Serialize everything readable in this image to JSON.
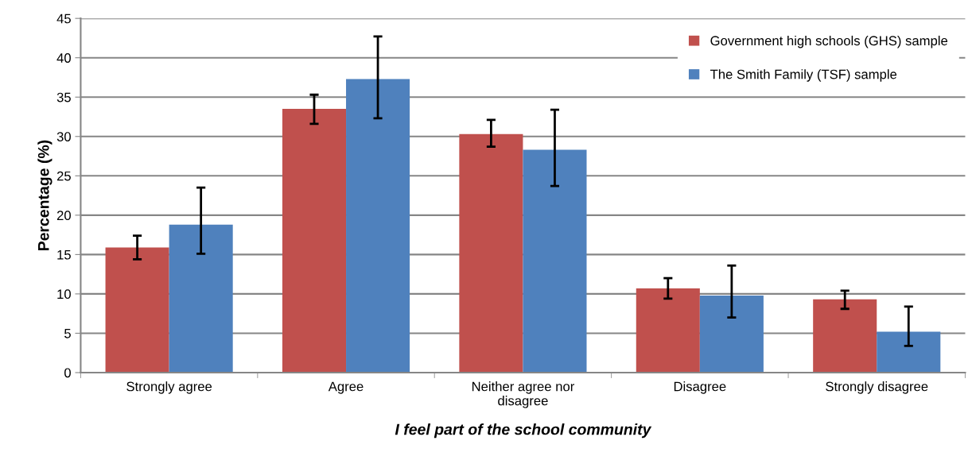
{
  "chart_data": {
    "type": "bar",
    "categories": [
      "Strongly agree",
      "Agree",
      "Neither agree nor\ndisagree",
      "Disagree",
      "Strongly disagree"
    ],
    "xlabel": "I feel part of the school community",
    "ylabel": "Percentage (%)",
    "series": [
      {
        "name": "Government high schools (GHS) sample",
        "color": "#c0504d",
        "values": [
          15.9,
          33.5,
          30.3,
          10.7,
          9.3
        ],
        "errors": [
          [
            14.4,
            17.4
          ],
          [
            31.6,
            35.3
          ],
          [
            28.7,
            32.1
          ],
          [
            9.4,
            12.0
          ],
          [
            8.1,
            10.4
          ]
        ]
      },
      {
        "name": "The Smith Family (TSF) sample",
        "color": "#4f81bd",
        "values": [
          18.8,
          37.3,
          28.3,
          9.8,
          5.2
        ],
        "errors": [
          [
            15.1,
            23.5
          ],
          [
            32.3,
            42.7
          ],
          [
            23.7,
            33.4
          ],
          [
            7.0,
            13.6
          ],
          [
            3.4,
            8.4
          ]
        ]
      }
    ],
    "ylim": [
      0,
      45
    ],
    "yticks": [
      0,
      5,
      10,
      15,
      20,
      25,
      30,
      35,
      40,
      45
    ],
    "grid": "y",
    "legend": "top right"
  }
}
